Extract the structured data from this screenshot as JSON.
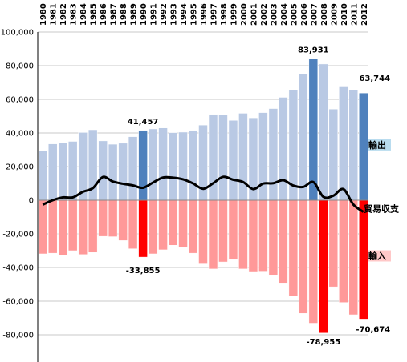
{
  "chart_data": {
    "type": "bar",
    "categories": [
      "1980",
      "1981",
      "1982",
      "1983",
      "1984",
      "1985",
      "1986",
      "1987",
      "1988",
      "1989",
      "1990",
      "1991",
      "1992",
      "1993",
      "1994",
      "1995",
      "1996",
      "1997",
      "1998",
      "1999",
      "2000",
      "2001",
      "2002",
      "2003",
      "2004",
      "2005",
      "2006",
      "2007",
      "2008",
      "2009",
      "2010",
      "2011",
      "2012"
    ],
    "series": [
      {
        "name": "輸出",
        "values": [
          29400,
          33500,
          34400,
          35000,
          40300,
          41900,
          35300,
          33300,
          33900,
          37800,
          41457,
          42400,
          43000,
          40200,
          40500,
          41500,
          44700,
          51000,
          50600,
          47500,
          51700,
          49000,
          52100,
          54500,
          61200,
          65700,
          75200,
          83931,
          81000,
          54200,
          67400,
          65500,
          63744
        ]
      },
      {
        "name": "輸入",
        "values": [
          -31900,
          -31500,
          -32700,
          -30000,
          -32300,
          -31100,
          -21500,
          -21700,
          -24000,
          -28900,
          -33855,
          -31900,
          -29500,
          -26800,
          -28100,
          -31500,
          -37900,
          -40900,
          -36700,
          -35300,
          -40900,
          -42400,
          -42200,
          -44400,
          -49200,
          -56900,
          -67300,
          -73100,
          -78955,
          -51500,
          -60800,
          -68100,
          -70674
        ]
      },
      {
        "name": "貿易収支",
        "values": [
          -2600,
          0,
          1700,
          1700,
          5000,
          7200,
          13800,
          11100,
          9800,
          8800,
          7400,
          10500,
          13500,
          13400,
          12400,
          10000,
          6800,
          10100,
          13900,
          12200,
          10800,
          6600,
          9900,
          10100,
          11900,
          8700,
          7900,
          10800,
          2000,
          2700,
          6600,
          -2600,
          -6900
        ]
      }
    ],
    "highlight_years": [
      "1990",
      "2007",
      "2008",
      "2012"
    ],
    "highlight_colors": {
      "export": "#4f81bd",
      "import": "#ff0000"
    },
    "colors": {
      "export": "#b9c9e4",
      "import": "#ff9999",
      "balance": "#000000"
    },
    "ylim": [
      -100000,
      100000
    ],
    "yticks": [
      100000,
      80000,
      60000,
      40000,
      20000,
      0,
      -20000,
      -40000,
      -60000,
      -80000
    ],
    "ytick_labels": [
      "100,000",
      "80,000",
      "60,000",
      "40,000",
      "20,000",
      "0",
      "-20,000",
      "-40,000",
      "-60,000",
      "-80,000"
    ],
    "annotations": [
      {
        "year": "1990",
        "series": "輸出",
        "text": "41,457"
      },
      {
        "year": "1990",
        "series": "輸入",
        "text": "-33,855"
      },
      {
        "year": "2007",
        "series": "輸出",
        "text": "83,931"
      },
      {
        "year": "2008",
        "series": "輸入",
        "text": "-78,955"
      },
      {
        "year": "2012",
        "series": "輸出",
        "text": "63,744"
      },
      {
        "year": "2012",
        "series": "輸入",
        "text": "-70,674"
      }
    ],
    "legend_labels": {
      "export": "輸出",
      "import": "輸入",
      "balance": "貿易収支"
    },
    "grid": true,
    "title": "",
    "xlabel": "",
    "ylabel": ""
  }
}
